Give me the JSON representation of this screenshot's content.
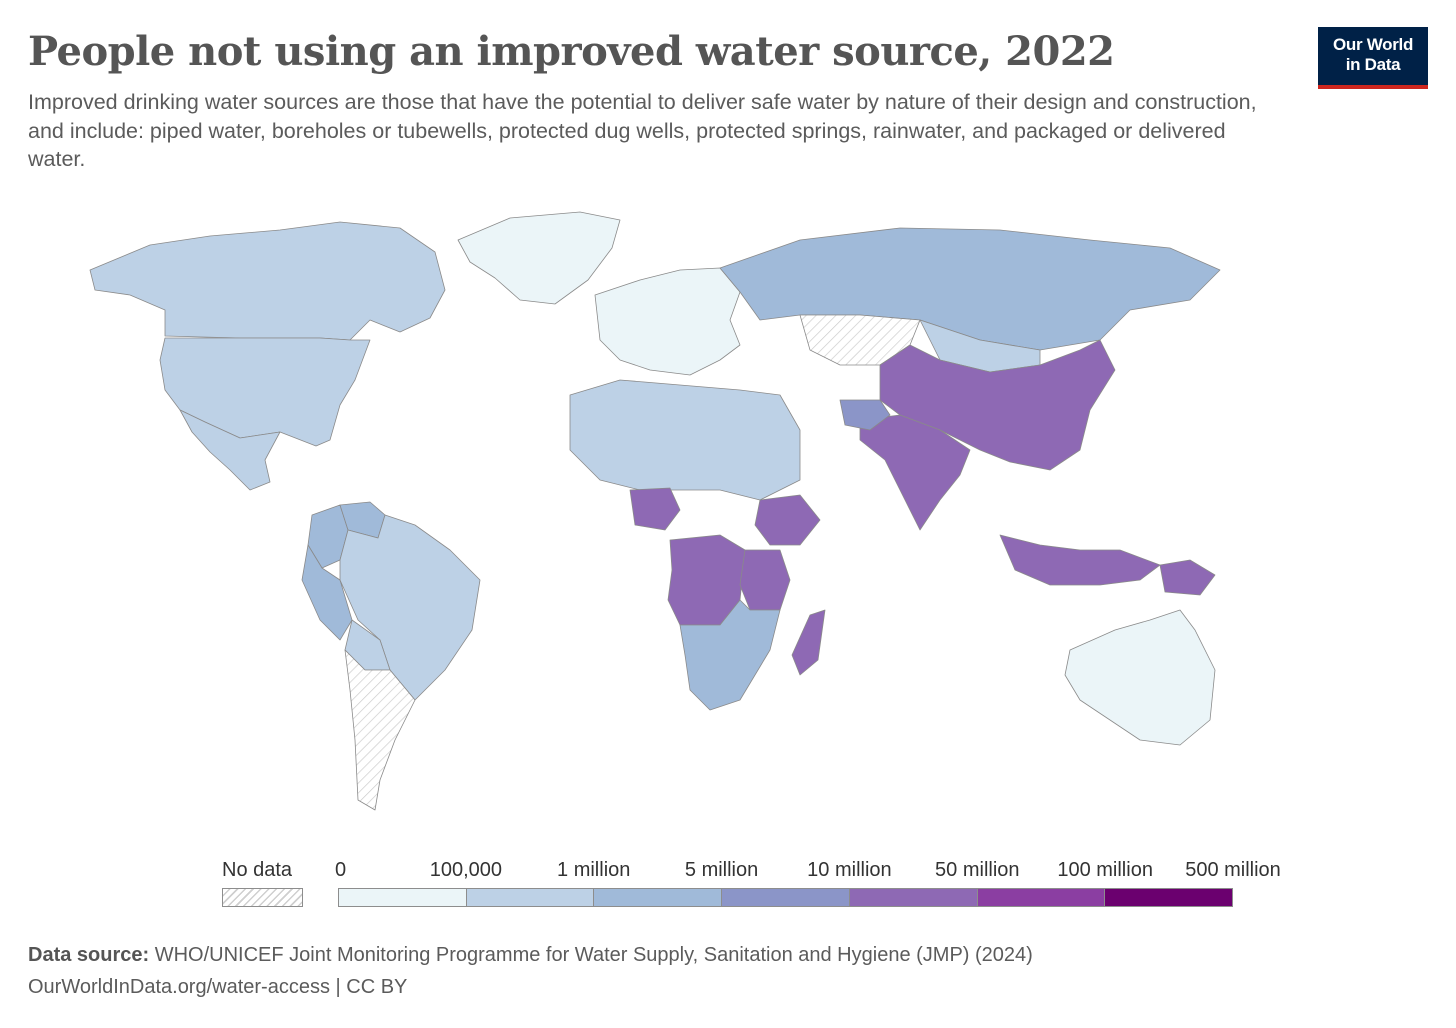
{
  "header": {
    "title": "People not using an improved water source, 2022",
    "subtitle": "Improved drinking water sources are those that have the potential to deliver safe water by nature of their design and construction, and include: piped water, boreholes or tubewells, protected dug wells, protected springs, rainwater, and packaged or delivered water.",
    "logo_line1": "Our World",
    "logo_line2": "in Data"
  },
  "legend": {
    "no_data_label": "No data",
    "tick_labels": [
      "0",
      "100,000",
      "1 million",
      "5 million",
      "10 million",
      "50 million",
      "100 million",
      "500 million"
    ],
    "bin_colors": [
      "#ebf5f8",
      "#bdd1e6",
      "#a0bad9",
      "#8b95c8",
      "#8e69b4",
      "#8b3ea2",
      "#6b006f"
    ]
  },
  "colors": {
    "no_data": "#ffffff",
    "ocean": "#ffffff",
    "border": "#8a8a8a"
  },
  "regions": [
    {
      "name": "Greenland",
      "bin": 0
    },
    {
      "name": "Canada",
      "bin": 1
    },
    {
      "name": "United States",
      "bin": 1
    },
    {
      "name": "Mexico",
      "bin": 1
    },
    {
      "name": "Colombia",
      "bin": 2
    },
    {
      "name": "Venezuela",
      "bin": 2
    },
    {
      "name": "Peru",
      "bin": 2
    },
    {
      "name": "Brazil",
      "bin": 1
    },
    {
      "name": "Bolivia",
      "bin": 1
    },
    {
      "name": "Argentina",
      "bin": -1
    },
    {
      "name": "Western Europe",
      "bin": 0
    },
    {
      "name": "Russia",
      "bin": 2
    },
    {
      "name": "Kazakhstan",
      "bin": -1
    },
    {
      "name": "Mongolia",
      "bin": 1
    },
    {
      "name": "China",
      "bin": 4
    },
    {
      "name": "India",
      "bin": 4
    },
    {
      "name": "Afghanistan",
      "bin": 3
    },
    {
      "name": "Indonesia",
      "bin": 4
    },
    {
      "name": "Papua New Guinea",
      "bin": 4
    },
    {
      "name": "Australia",
      "bin": 0
    },
    {
      "name": "North Africa",
      "bin": 1
    },
    {
      "name": "Nigeria",
      "bin": 4
    },
    {
      "name": "DR Congo",
      "bin": 4
    },
    {
      "name": "Ethiopia",
      "bin": 4
    },
    {
      "name": "Tanzania",
      "bin": 4
    },
    {
      "name": "Madagascar",
      "bin": 4
    },
    {
      "name": "Southern Africa",
      "bin": 2
    }
  ],
  "footer": {
    "source_label": "Data source:",
    "source_text": " WHO/UNICEF Joint Monitoring Programme for Water Supply, Sanitation and Hygiene (JMP) (2024)",
    "url_license": "OurWorldInData.org/water-access | CC BY"
  }
}
